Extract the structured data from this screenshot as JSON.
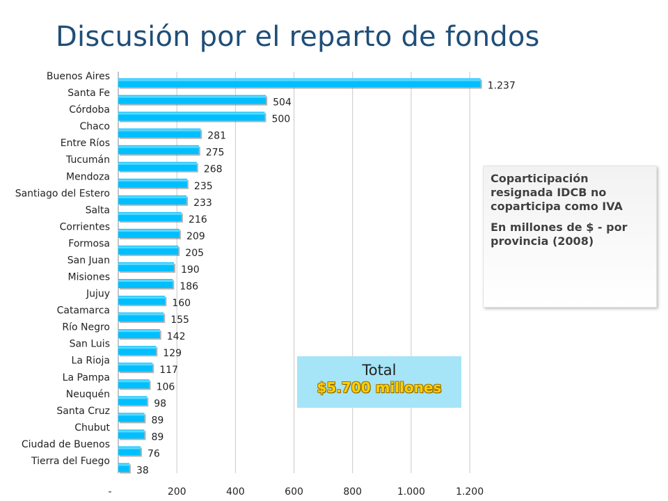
{
  "page": {
    "title": "Discusión por el reparto de fondos"
  },
  "info_box": {
    "line1": "Coparticipación resignada IDCB no coparticipa como IVA",
    "line2": "En millones de $ - por provincia (2008)"
  },
  "total_box": {
    "label": "Total",
    "value": "$5.700 millones"
  },
  "chart_data": {
    "type": "bar",
    "orientation": "horizontal",
    "categories": [
      "Buenos Aires",
      "Santa Fe",
      "Córdoba",
      "Chaco",
      "Entre Ríos",
      "Tucumán",
      "Mendoza",
      "Santiago del Estero",
      "Salta",
      "Corrientes",
      "Formosa",
      "San Juan",
      "Misiones",
      "Jujuy",
      "Catamarca",
      "Río Negro",
      "San Luis",
      "La Rioja",
      "La Pampa",
      "Neuquén",
      "Santa Cruz",
      "Chubut",
      "Ciudad de Buenos",
      "Tierra del Fuego"
    ],
    "values": [
      1237,
      504,
      500,
      281,
      275,
      268,
      235,
      233,
      216,
      209,
      205,
      190,
      186,
      160,
      155,
      142,
      129,
      117,
      106,
      98,
      89,
      89,
      76,
      38
    ],
    "value_labels": [
      "1.237",
      "504",
      "500",
      "281",
      "275",
      "268",
      "235",
      "233",
      "216",
      "209",
      "205",
      "190",
      "186",
      "160",
      "155",
      "142",
      "129",
      "117",
      "106",
      "98",
      "89",
      "89",
      "76",
      "38"
    ],
    "xticks": [
      0,
      200,
      400,
      600,
      800,
      1000,
      1200
    ],
    "xtick_labels": [
      "-",
      "200",
      "400",
      "600",
      "800",
      "1.000",
      "1.200"
    ],
    "xlim": [
      0,
      1300
    ],
    "grid": true,
    "bar_color": "#00bfff",
    "bar_shadow_color": "#777777",
    "grid_color": "#c8c8c8"
  }
}
